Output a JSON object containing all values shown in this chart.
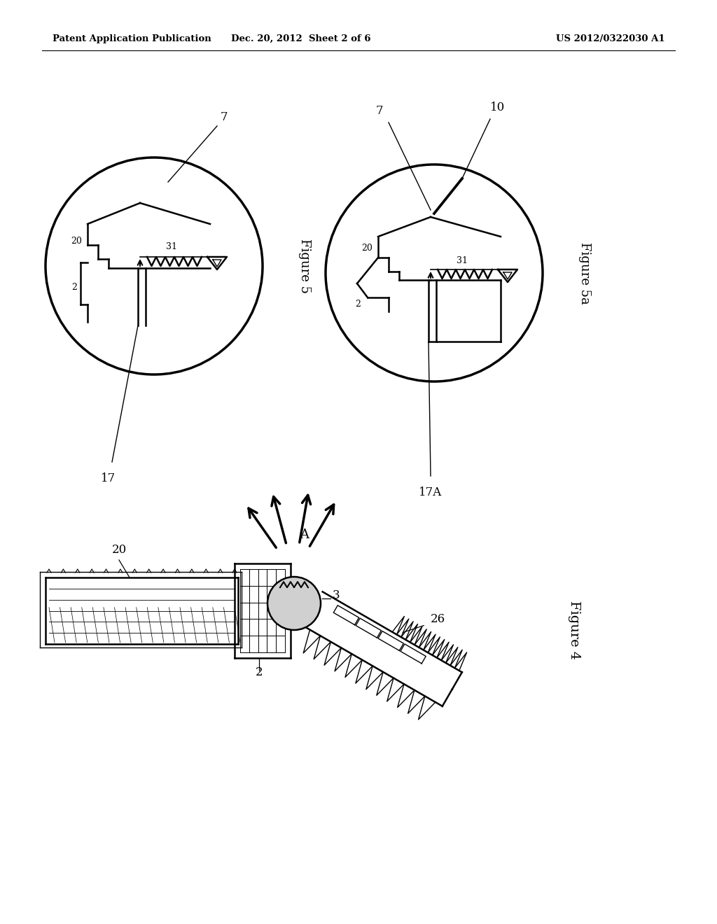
{
  "bg_color": "#ffffff",
  "line_color": "#000000",
  "header_left": "Patent Application Publication",
  "header_mid": "Dec. 20, 2012  Sheet 2 of 6",
  "header_right": "US 2012/0322030 A1"
}
